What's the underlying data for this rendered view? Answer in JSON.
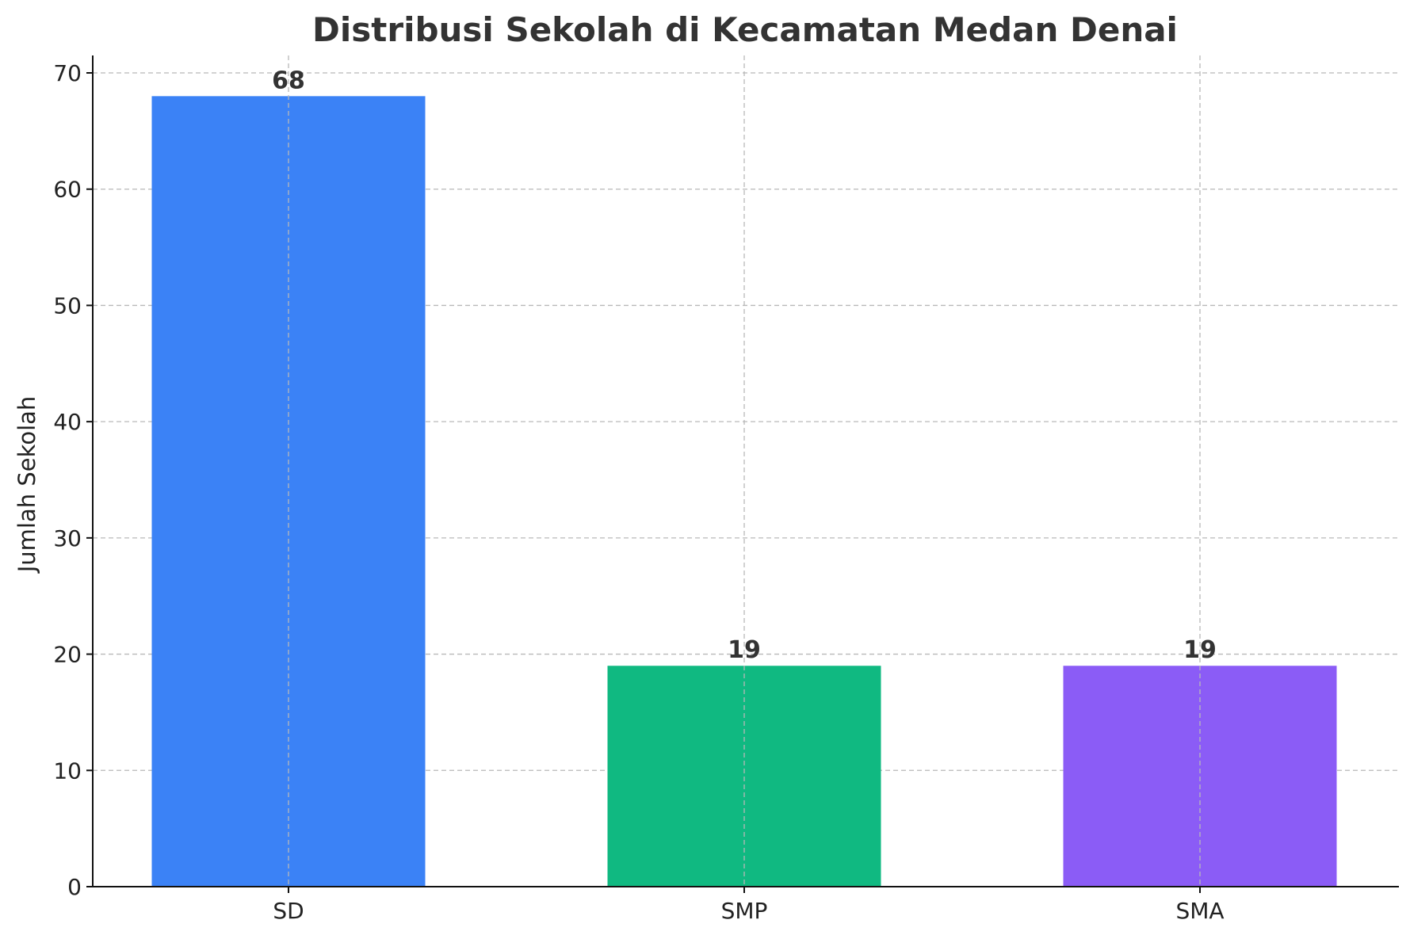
{
  "chart_data": {
    "type": "bar",
    "title": "Distribusi Sekolah di Kecamatan Medan Denai",
    "xlabel": "",
    "ylabel": "Jumlah Sekolah",
    "categories": [
      "SD",
      "SMP",
      "SMA"
    ],
    "values": [
      68,
      19,
      19
    ],
    "colors": [
      "#3b82f6",
      "#10b981",
      "#8b5cf6"
    ],
    "ylim": [
      0,
      70
    ],
    "yticks": [
      0,
      10,
      20,
      30,
      40,
      50,
      60,
      70
    ],
    "grid": true,
    "data_labels": [
      "68",
      "19",
      "19"
    ]
  }
}
